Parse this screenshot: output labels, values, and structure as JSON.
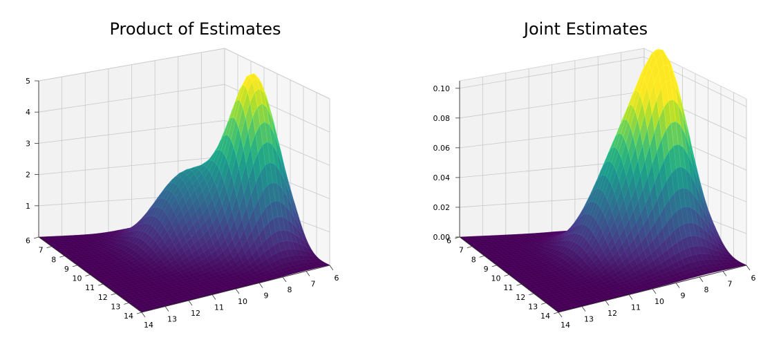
{
  "chart_data": [
    {
      "type": "surface3d",
      "title": "Product of Estimates",
      "colormap": "viridis",
      "x_ticks": [
        "6",
        "7",
        "8",
        "9",
        "10",
        "11",
        "12",
        "13",
        "14"
      ],
      "y_ticks": [
        "14",
        "13",
        "12",
        "11",
        "10",
        "9",
        "8",
        "7",
        "6"
      ],
      "z_ticks": [
        "1",
        "2",
        "3",
        "4",
        "5"
      ],
      "xlim": [
        6,
        14
      ],
      "ylim": [
        6,
        14
      ],
      "zlim": [
        0,
        5
      ],
      "peaks": [
        {
          "x": 7.2,
          "y": 10.4,
          "z": 5.0
        },
        {
          "x": 9.3,
          "y": 8.9,
          "z": 2.2
        }
      ]
    },
    {
      "type": "surface3d",
      "title": "Joint Estimates",
      "colormap": "viridis",
      "x_ticks": [
        "6",
        "7",
        "8",
        "9",
        "10",
        "11",
        "12",
        "13",
        "14"
      ],
      "y_ticks": [
        "14",
        "13",
        "12",
        "11",
        "10",
        "9",
        "8",
        "7",
        "6"
      ],
      "z_ticks": [
        "0.00",
        "0.02",
        "0.04",
        "0.06",
        "0.08",
        "0.10"
      ],
      "xlim": [
        6,
        14
      ],
      "ylim": [
        6,
        14
      ],
      "zlim": [
        0,
        0.105
      ],
      "peaks": [
        {
          "x": 7.5,
          "y": 10.5,
          "z": 0.1
        },
        {
          "x": 9.0,
          "y": 9.8,
          "z": 0.062
        }
      ]
    }
  ]
}
